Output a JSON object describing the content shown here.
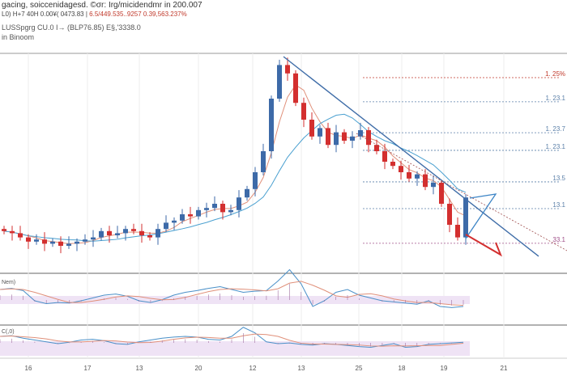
{
  "header": {
    "title": "gacing, soiccenidagesd. ©σr: Irg/micidendmr in 200.007",
    "stats": "L0) H+7 40H 0.00¥( 0473.83 |",
    "stats_red": "6.5/449.535..9257 0.39,563.237%",
    "symbol": "LUSSpgrg CU.0 I→ (BLP76.85) E§,'3338.0",
    "subtitle": "in Binoom"
  },
  "indicators": [
    {
      "label": "Nem)"
    },
    {
      "label": "C(,0)"
    }
  ],
  "colors": {
    "up": "#3d6aa8",
    "down": "#d32f2f",
    "trend": "#3f6da8",
    "ma_fast": "#e0907a",
    "ma_slow": "#4aa0d0",
    "fib": "#5a7fa8",
    "panel": "#efe3f5"
  },
  "chart_data": {
    "type": "candlestick",
    "x_ticks": [
      "16",
      "17",
      "13",
      "20",
      "12",
      "13",
      "25",
      "18",
      "19",
      "21"
    ],
    "closes": [
      17,
      16,
      14,
      12,
      13,
      11,
      12,
      10,
      11,
      12,
      13,
      14,
      17,
      15,
      16,
      18,
      17,
      15,
      14,
      18,
      21,
      22,
      25,
      24,
      27,
      28,
      30,
      26,
      27,
      33,
      37,
      45,
      55,
      80,
      96,
      92,
      78,
      70,
      62,
      66,
      58,
      64,
      60,
      62,
      65,
      58,
      55,
      50,
      48,
      45,
      42,
      44,
      38,
      40,
      30,
      20,
      14,
      33
    ],
    "first_open": 18,
    "ylim": [
      0,
      100
    ],
    "fib_levels": [
      {
        "value": 90,
        "label": "1. 25%",
        "color": "#c0392b"
      },
      {
        "value": 78.5,
        "label": "1. 23.1"
      },
      {
        "value": 63.8,
        "label": "1. 23.7"
      },
      {
        "value": 55.4,
        "label": "1. 23.1"
      },
      {
        "value": 40.4,
        "label": "13.5"
      },
      {
        "value": 27.7,
        "label": "13.1"
      },
      {
        "value": 11.2,
        "label": "33.1",
        "color": "#a0508a"
      }
    ],
    "trendline": {
      "from": [
        34,
        100
      ],
      "to": [
        65,
        13.5
      ]
    },
    "osc1": [
      60,
      62,
      58,
      40,
      35,
      37,
      36,
      40,
      45,
      50,
      52,
      48,
      40,
      37,
      42,
      50,
      55,
      58,
      62,
      65,
      60,
      55,
      57,
      58,
      75,
      95,
      70,
      30,
      40,
      55,
      60,
      50,
      45,
      40,
      38,
      36,
      34,
      40,
      30,
      28,
      30
    ],
    "osc2": [
      60,
      62,
      55,
      50,
      45,
      40,
      44,
      50,
      52,
      48,
      40,
      38,
      45,
      50,
      55,
      58,
      60,
      58,
      52,
      50,
      60,
      85,
      70,
      45,
      40,
      42,
      38,
      36,
      40,
      38,
      35,
      32,
      30,
      35,
      40,
      30,
      32,
      38,
      40,
      42,
      44
    ]
  }
}
